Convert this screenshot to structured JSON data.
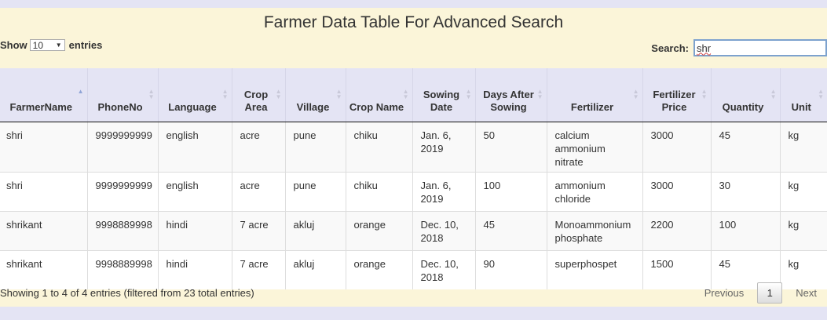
{
  "title": "Farmer Data Table For Advanced Search",
  "length": {
    "show_label": "Show",
    "value": "10",
    "entries_label": "entries"
  },
  "search": {
    "label": "Search:",
    "value": "shr"
  },
  "columns": [
    "FarmerName",
    "PhoneNo",
    "Language",
    "Crop Area",
    "Village",
    "Crop Name",
    "Sowing Date",
    "Days After Sowing",
    "Fertilizer",
    "Fertilizer Price",
    "Quantity",
    "Unit"
  ],
  "rows": [
    [
      "shri",
      "9999999999",
      "english",
      "acre",
      "pune",
      "chiku",
      "Jan. 6, 2019",
      "50",
      "calcium ammonium nitrate",
      "3000",
      "45",
      "kg"
    ],
    [
      "shri",
      "9999999999",
      "english",
      "acre",
      "pune",
      "chiku",
      "Jan. 6, 2019",
      "100",
      "ammonium chloride",
      "3000",
      "30",
      "kg"
    ],
    [
      "shrikant",
      "9998889998",
      "hindi",
      "7 acre",
      "akluj",
      "orange",
      "Dec. 10, 2018",
      "45",
      "Monoammonium phosphate",
      "2200",
      "100",
      "kg"
    ],
    [
      "shrikant",
      "9998889998",
      "hindi",
      "7 acre",
      "akluj",
      "orange",
      "Dec. 10, 2018",
      "90",
      "superphospet",
      "1500",
      "45",
      "kg"
    ]
  ],
  "info": "Showing 1 to 4 of 4 entries (filtered from 23 total entries)",
  "pagination": {
    "previous": "Previous",
    "current": "1",
    "next": "Next"
  },
  "icons": {
    "sort": "sort-arrows-icon",
    "dropdown": "chevron-down-icon"
  }
}
